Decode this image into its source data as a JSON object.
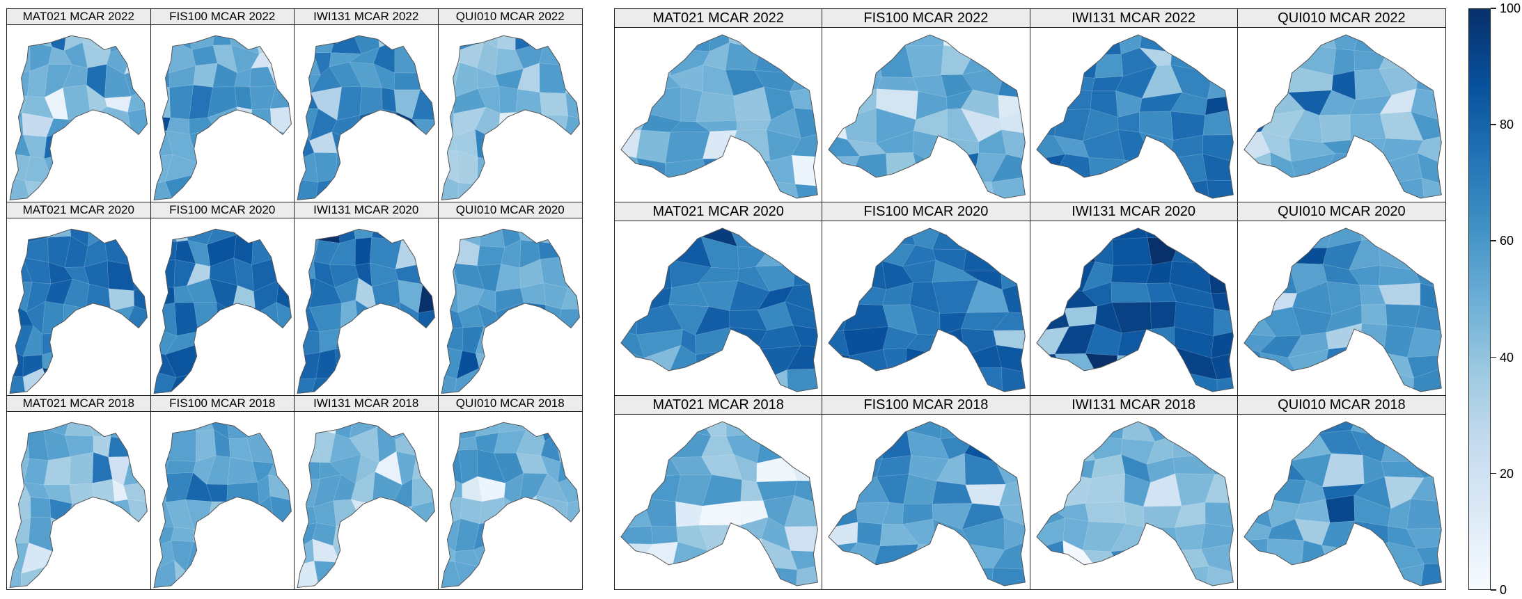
{
  "colormap": [
    "#f7fbff",
    "#deebf7",
    "#c6dbef",
    "#9ecae1",
    "#6baed6",
    "#4292c6",
    "#2171b5",
    "#08519c",
    "#08306b"
  ],
  "left_grid": {
    "panels": [
      {
        "title": "MAT021 MCAR 2022",
        "level": 48
      },
      {
        "title": "FIS100 MCAR 2022",
        "level": 55
      },
      {
        "title": "IWI131 MCAR 2022",
        "level": 68
      },
      {
        "title": "QUI010 MCAR 2022",
        "level": 44
      },
      {
        "title": "MAT021 MCAR 2020",
        "level": 72
      },
      {
        "title": "FIS100 MCAR 2020",
        "level": 74
      },
      {
        "title": "IWI131 MCAR 2020",
        "level": 73
      },
      {
        "title": "QUI010 MCAR 2020",
        "level": 58
      },
      {
        "title": "MAT021 MCAR 2018",
        "level": 45
      },
      {
        "title": "FIS100 MCAR 2018",
        "level": 52
      },
      {
        "title": "IWI131 MCAR 2018",
        "level": 48
      },
      {
        "title": "QUI010 MCAR 2018",
        "level": 52
      }
    ]
  },
  "right_grid": {
    "panels": [
      {
        "title": "MAT021 MCAR 2022",
        "level": 52
      },
      {
        "title": "FIS100 MCAR 2022",
        "level": 50
      },
      {
        "title": "IWI131 MCAR 2022",
        "level": 68
      },
      {
        "title": "QUI010 MCAR 2022",
        "level": 48
      },
      {
        "title": "MAT021 MCAR 2020",
        "level": 75
      },
      {
        "title": "FIS100 MCAR 2020",
        "level": 76
      },
      {
        "title": "IWI131 MCAR 2020",
        "level": 82
      },
      {
        "title": "QUI010 MCAR 2020",
        "level": 60
      },
      {
        "title": "MAT021 MCAR 2018",
        "level": 48
      },
      {
        "title": "FIS100 MCAR 2018",
        "level": 58
      },
      {
        "title": "IWI131 MCAR 2018",
        "level": 45
      },
      {
        "title": "QUI010 MCAR 2018",
        "level": 60
      }
    ]
  },
  "colorbar": {
    "min": 0,
    "max": 100,
    "ticks": [
      "0",
      "20",
      "40",
      "60",
      "80",
      "100"
    ]
  }
}
